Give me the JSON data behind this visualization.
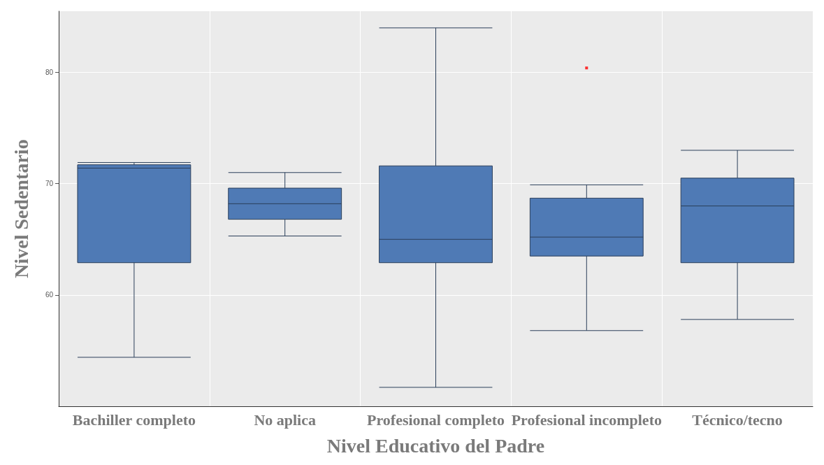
{
  "chart_data": {
    "type": "box",
    "xlabel": "Nivel Educativo del Padre",
    "ylabel": "Nivel Sedentario",
    "categories": [
      "Bachiller completo",
      "No aplica",
      "Profesional completo",
      "Profesional incompleto",
      "Técnico/tecno"
    ],
    "series": [
      {
        "color": "#4f7ab5",
        "boxes": [
          {
            "low": 54.4,
            "q1": 62.9,
            "median": 71.4,
            "q3": 71.7,
            "high": 71.9
          },
          {
            "low": 65.3,
            "q1": 66.8,
            "median": 68.2,
            "q3": 69.6,
            "high": 71.0
          },
          {
            "low": 51.7,
            "q1": 62.9,
            "median": 65.0,
            "q3": 71.6,
            "high": 84.0
          },
          {
            "low": 56.8,
            "q1": 63.5,
            "median": 65.2,
            "q3": 68.7,
            "high": 69.9
          },
          {
            "low": 57.8,
            "q1": 62.9,
            "median": 68.0,
            "q3": 70.5,
            "high": 73.0
          }
        ]
      },
      {
        "type": "scatter",
        "color": "#ff0000",
        "x": [
          "Profesional incompleto"
        ],
        "values": [
          80.4
        ]
      }
    ],
    "ylim": [
      50,
      85.5
    ],
    "yticks": [
      60,
      70,
      80
    ],
    "grid": true
  }
}
